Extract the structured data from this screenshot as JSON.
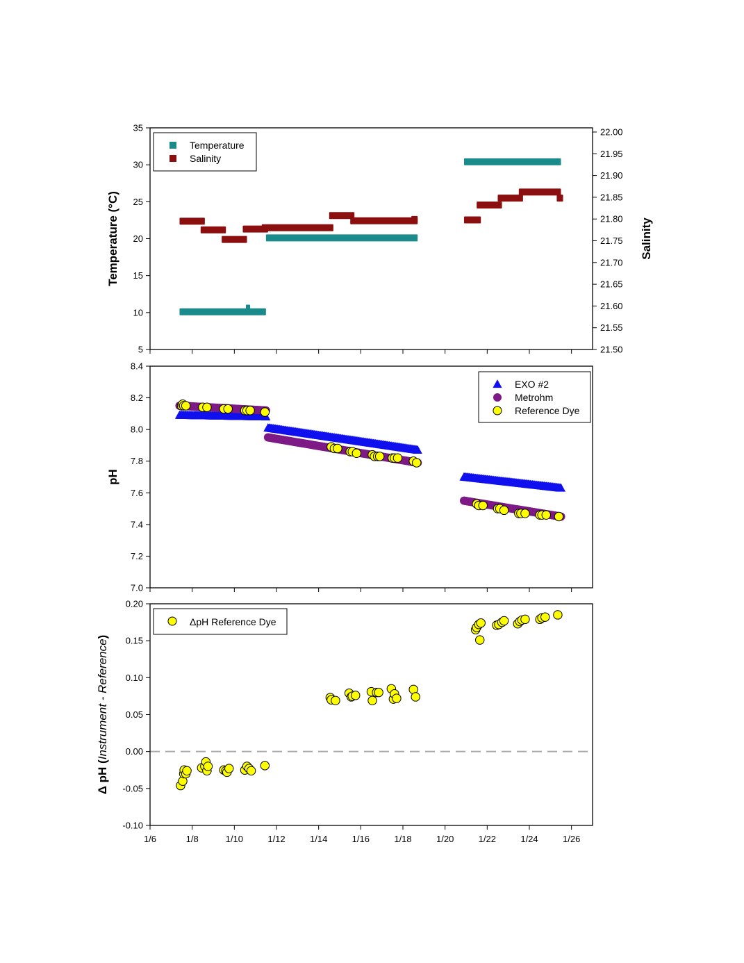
{
  "chart_data": [
    {
      "type": "scatter",
      "title": "",
      "xlabel": "",
      "ylabel": "Temperature (°C)",
      "y2label": "Salinity",
      "ylim": [
        5,
        35
      ],
      "y2lim": [
        21.5,
        22.0
      ],
      "yticks": [
        "35",
        "30",
        "25",
        "20",
        "15",
        "10",
        "5"
      ],
      "y2ticks": [
        "22.00",
        "21.95",
        "21.90",
        "21.85",
        "21.80",
        "21.75",
        "21.70",
        "21.65",
        "21.60",
        "21.55",
        "21.50"
      ],
      "legend_position": "top-left",
      "series": [
        {
          "name": "Temperature",
          "color": "#1a8a8a",
          "marker": "square",
          "axis": "left",
          "segments": [
            {
              "x0": 7.4,
              "x1": 11.5,
              "y": 10.1
            },
            {
              "x0": 10.55,
              "x1": 10.75,
              "y": 10.6
            },
            {
              "x0": 11.5,
              "x1": 18.7,
              "y": 20.1
            },
            {
              "x0": 20.9,
              "x1": 25.5,
              "y": 30.4
            }
          ]
        },
        {
          "name": "Salinity",
          "color": "#8b0f0f",
          "marker": "square",
          "axis": "right",
          "segments": [
            {
              "x0": 7.4,
              "x1": 8.6,
              "y": 21.795
            },
            {
              "x0": 8.4,
              "x1": 9.6,
              "y": 21.775
            },
            {
              "x0": 9.4,
              "x1": 10.6,
              "y": 21.753
            },
            {
              "x0": 10.4,
              "x1": 11.6,
              "y": 21.777
            },
            {
              "x0": 11.3,
              "x1": 14.7,
              "y": 21.78
            },
            {
              "x0": 14.5,
              "x1": 15.7,
              "y": 21.808
            },
            {
              "x0": 15.5,
              "x1": 18.7,
              "y": 21.796
            },
            {
              "x0": 18.4,
              "x1": 18.7,
              "y": 21.799
            },
            {
              "x0": 20.9,
              "x1": 21.7,
              "y": 21.798
            },
            {
              "x0": 21.5,
              "x1": 22.7,
              "y": 21.832
            },
            {
              "x0": 22.5,
              "x1": 23.7,
              "y": 21.848
            },
            {
              "x0": 23.5,
              "x1": 25.5,
              "y": 21.862
            },
            {
              "x0": 25.3,
              "x1": 25.6,
              "y": 21.848
            }
          ]
        }
      ]
    },
    {
      "type": "scatter",
      "title": "",
      "xlabel": "",
      "ylabel": "pH",
      "ylim": [
        7.0,
        8.4
      ],
      "yticks": [
        "8.4",
        "8.2",
        "8.0",
        "7.8",
        "7.6",
        "7.4",
        "7.2",
        "7.0"
      ],
      "legend_position": "top-right",
      "series": [
        {
          "name": "EXO #2",
          "color": "#1010ee",
          "marker": "triangle",
          "segments": [
            {
              "x0": 7.4,
              "x1": 11.5,
              "y0": 8.09,
              "y1": 8.08
            },
            {
              "x0": 11.6,
              "x1": 18.7,
              "y0": 8.01,
              "y1": 7.87
            },
            {
              "x0": 20.9,
              "x1": 25.5,
              "y0": 7.7,
              "y1": 7.63
            }
          ]
        },
        {
          "name": "Metrohm",
          "color": "#7d1a86",
          "marker": "circle",
          "segments": [
            {
              "x0": 7.4,
              "x1": 11.5,
              "y0": 8.15,
              "y1": 8.12
            },
            {
              "x0": 11.6,
              "x1": 18.7,
              "y0": 7.95,
              "y1": 7.79
            },
            {
              "x0": 20.9,
              "x1": 25.5,
              "y0": 7.55,
              "y1": 7.45
            }
          ]
        },
        {
          "name": "Reference Dye",
          "color": "#ffff00",
          "marker": "circle",
          "points": [
            [
              7.5,
              8.15
            ],
            [
              7.55,
              8.16
            ],
            [
              7.6,
              8.15
            ],
            [
              7.7,
              8.15
            ],
            [
              8.5,
              8.14
            ],
            [
              8.7,
              8.14
            ],
            [
              9.5,
              8.13
            ],
            [
              9.7,
              8.13
            ],
            [
              10.5,
              8.12
            ],
            [
              10.6,
              8.12
            ],
            [
              10.75,
              8.12
            ],
            [
              11.45,
              8.11
            ],
            [
              14.6,
              7.89
            ],
            [
              14.75,
              7.88
            ],
            [
              14.9,
              7.88
            ],
            [
              15.5,
              7.86
            ],
            [
              15.6,
              7.86
            ],
            [
              15.8,
              7.85
            ],
            [
              16.55,
              7.84
            ],
            [
              16.65,
              7.83
            ],
            [
              16.8,
              7.83
            ],
            [
              16.9,
              7.83
            ],
            [
              17.5,
              7.82
            ],
            [
              17.6,
              7.82
            ],
            [
              17.75,
              7.82
            ],
            [
              18.5,
              7.8
            ],
            [
              18.65,
              7.79
            ],
            [
              21.5,
              7.53
            ],
            [
              21.6,
              7.52
            ],
            [
              21.8,
              7.52
            ],
            [
              22.5,
              7.5
            ],
            [
              22.6,
              7.5
            ],
            [
              22.8,
              7.49
            ],
            [
              23.5,
              7.47
            ],
            [
              23.6,
              7.47
            ],
            [
              23.8,
              7.47
            ],
            [
              24.5,
              7.46
            ],
            [
              24.6,
              7.46
            ],
            [
              24.8,
              7.46
            ],
            [
              25.4,
              7.45
            ]
          ]
        }
      ]
    },
    {
      "type": "scatter",
      "title": "",
      "xlabel": "",
      "ylabel_parts": [
        "Δ pH (",
        "Instrument - Reference",
        ")"
      ],
      "ylim": [
        -0.1,
        0.2
      ],
      "yticks": [
        "0.20",
        "0.15",
        "0.10",
        "0.05",
        "0.00",
        "-0.05",
        "-0.10"
      ],
      "xlim": [
        6,
        27
      ],
      "xticks": [
        6,
        8,
        10,
        12,
        14,
        16,
        18,
        20,
        22,
        24,
        26
      ],
      "xticklabels": [
        "1/6",
        "1/8",
        "1/10",
        "1/12",
        "1/14",
        "1/16",
        "1/18",
        "1/20",
        "1/22",
        "1/24",
        "1/26"
      ],
      "reference_line": 0.0,
      "legend_position": "top-left",
      "series": [
        {
          "name": "ΔpH Reference Dye",
          "color": "#ffff00",
          "marker": "circle",
          "points": [
            [
              7.45,
              -0.046
            ],
            [
              7.55,
              -0.04
            ],
            [
              7.6,
              -0.03
            ],
            [
              7.62,
              -0.025
            ],
            [
              7.7,
              -0.03
            ],
            [
              7.75,
              -0.026
            ],
            [
              8.45,
              -0.022
            ],
            [
              8.6,
              -0.02
            ],
            [
              8.65,
              -0.014
            ],
            [
              8.7,
              -0.026
            ],
            [
              8.75,
              -0.02
            ],
            [
              9.5,
              -0.025
            ],
            [
              9.6,
              -0.026
            ],
            [
              9.65,
              -0.028
            ],
            [
              9.75,
              -0.023
            ],
            [
              10.5,
              -0.025
            ],
            [
              10.6,
              -0.02
            ],
            [
              10.7,
              -0.023
            ],
            [
              10.8,
              -0.026
            ],
            [
              11.45,
              -0.019
            ],
            [
              14.55,
              0.073
            ],
            [
              14.6,
              0.07
            ],
            [
              14.8,
              0.069
            ],
            [
              15.45,
              0.079
            ],
            [
              15.55,
              0.074
            ],
            [
              15.6,
              0.075
            ],
            [
              15.75,
              0.076
            ],
            [
              16.5,
              0.081
            ],
            [
              16.55,
              0.069
            ],
            [
              16.75,
              0.08
            ],
            [
              16.85,
              0.08
            ],
            [
              17.45,
              0.085
            ],
            [
              17.55,
              0.071
            ],
            [
              17.6,
              0.078
            ],
            [
              17.7,
              0.072
            ],
            [
              18.5,
              0.084
            ],
            [
              18.6,
              0.074
            ],
            [
              21.45,
              0.165
            ],
            [
              21.5,
              0.168
            ],
            [
              21.6,
              0.172
            ],
            [
              21.65,
              0.151
            ],
            [
              21.7,
              0.174
            ],
            [
              22.45,
              0.171
            ],
            [
              22.55,
              0.172
            ],
            [
              22.7,
              0.175
            ],
            [
              22.8,
              0.177
            ],
            [
              23.45,
              0.173
            ],
            [
              23.55,
              0.176
            ],
            [
              23.65,
              0.178
            ],
            [
              23.8,
              0.179
            ],
            [
              24.5,
              0.179
            ],
            [
              24.6,
              0.181
            ],
            [
              24.75,
              0.182
            ],
            [
              25.35,
              0.185
            ]
          ]
        }
      ]
    }
  ]
}
